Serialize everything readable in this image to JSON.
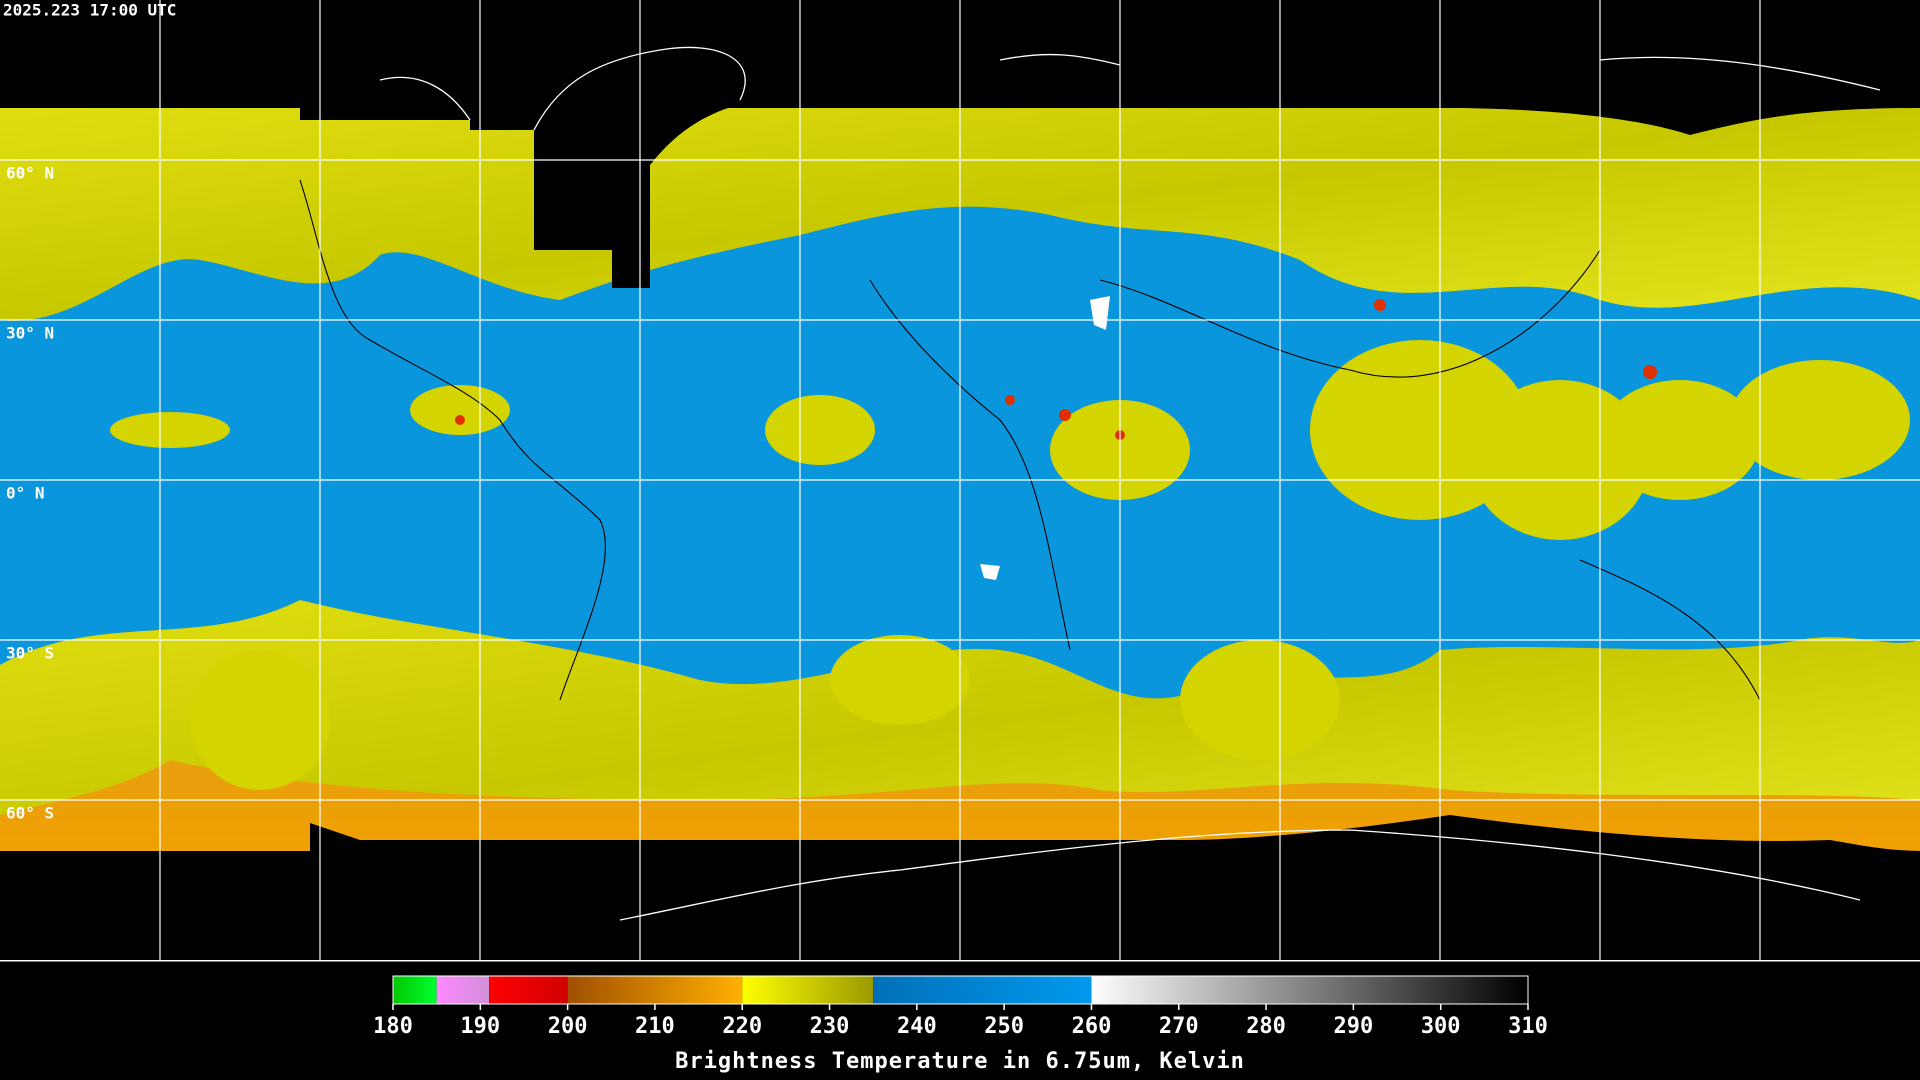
{
  "header": {
    "timestamp": "2025.223 17:00 UTC"
  },
  "map": {
    "latitude_labels": [
      "60° N",
      "30° N",
      "0° N",
      "30° S",
      "60° S"
    ]
  },
  "colorbar": {
    "title": "Brightness Temperature in 6.75um, Kelvin",
    "range": [
      180,
      310
    ],
    "ticks": [
      180,
      190,
      200,
      210,
      220,
      230,
      240,
      250,
      260,
      270,
      280,
      290,
      300,
      310
    ],
    "segments": [
      {
        "from": 180,
        "to": 185,
        "colors": [
          "#00c800",
          "#00ff30"
        ]
      },
      {
        "from": 185,
        "to": 191,
        "colors": [
          "#ff88ff",
          "#d090d8"
        ]
      },
      {
        "from": 191,
        "to": 200,
        "colors": [
          "#ff0000",
          "#d00000"
        ]
      },
      {
        "from": 200,
        "to": 220,
        "colors": [
          "#a05000",
          "#ffb000"
        ]
      },
      {
        "from": 220,
        "to": 235,
        "colors": [
          "#ffff00",
          "#9a9a00"
        ]
      },
      {
        "from": 235,
        "to": 260,
        "colors": [
          "#0070b8",
          "#0099ee"
        ]
      },
      {
        "from": 260,
        "to": 310,
        "colors": [
          "#ffffff",
          "#000000"
        ]
      }
    ]
  }
}
